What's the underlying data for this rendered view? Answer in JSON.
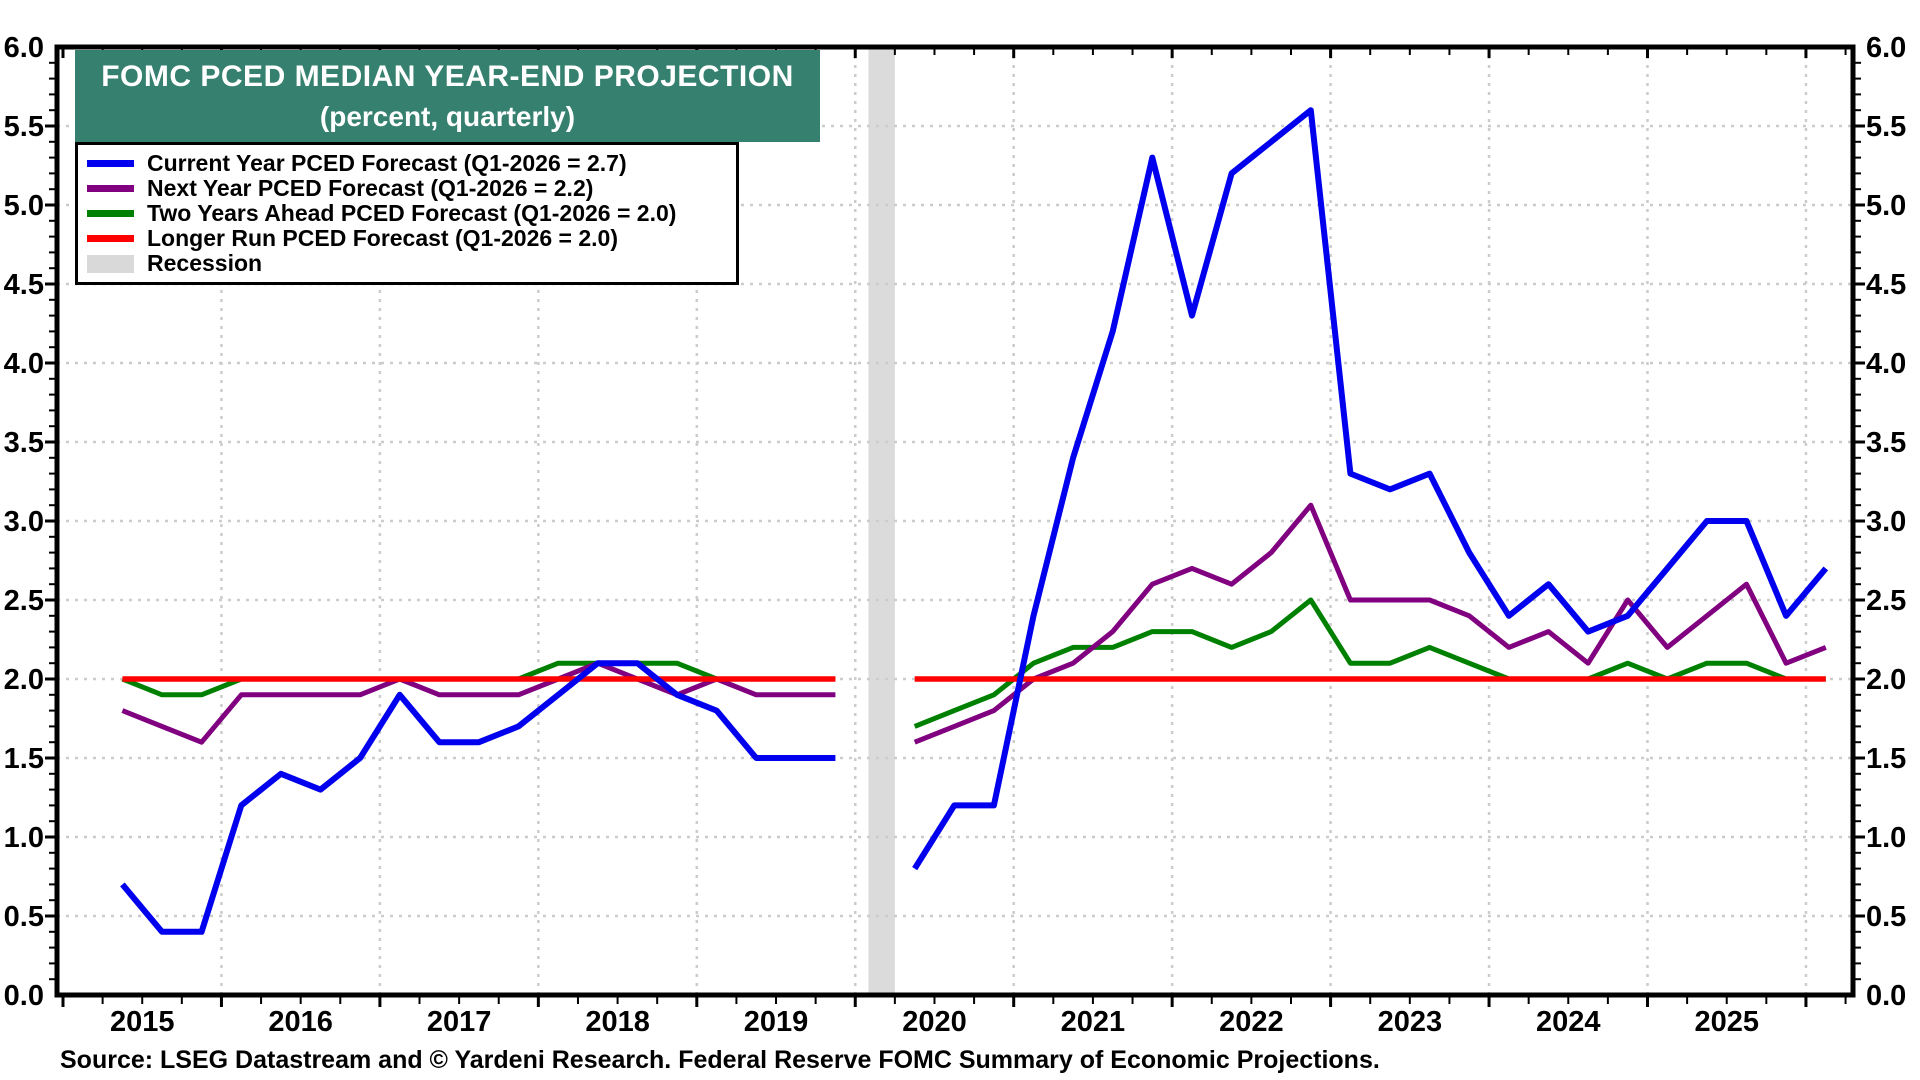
{
  "title": {
    "line1": "FOMC PCED MEDIAN YEAR-END PROJECTION",
    "line2": "(percent, quarterly)"
  },
  "source": "Source: LSEG Datastream and © Yardeni Research. Federal Reserve FOMC Summary of Economic Projections.",
  "colors": {
    "background": "#FFFFFF",
    "title_bg": "#35806F",
    "title_text": "#FFFFFF",
    "frame": "#000000",
    "gridline": "#CCCCCC",
    "recession": "#DBDBDB",
    "text": "#000000"
  },
  "chart_data": {
    "type": "line",
    "title": "FOMC PCED MEDIAN YEAR-END PROJECTION",
    "subtitle": "(percent, quarterly)",
    "grid": true,
    "legend_position": "top-left",
    "x": [
      "2015Q2",
      "2015Q3",
      "2015Q4",
      "2016Q1",
      "2016Q2",
      "2016Q3",
      "2016Q4",
      "2017Q1",
      "2017Q2",
      "2017Q3",
      "2017Q4",
      "2018Q1",
      "2018Q2",
      "2018Q3",
      "2018Q4",
      "2019Q1",
      "2019Q2",
      "2019Q3",
      "2019Q4",
      "2020Q1",
      "2020Q2",
      "2020Q3",
      "2020Q4",
      "2021Q1",
      "2021Q2",
      "2021Q3",
      "2021Q4",
      "2022Q1",
      "2022Q2",
      "2022Q3",
      "2022Q4",
      "2023Q1",
      "2023Q2",
      "2023Q3",
      "2023Q4",
      "2024Q1",
      "2024Q2",
      "2024Q3",
      "2024Q4",
      "2025Q1",
      "2025Q2",
      "2025Q3",
      "2025Q4",
      "2026Q1"
    ],
    "series": [
      {
        "name": "Current Year PCED Forecast (Q1-2026 = 2.7)",
        "color": "#0000EE",
        "values": [
          0.7,
          0.4,
          0.4,
          1.2,
          1.4,
          1.3,
          1.5,
          1.9,
          1.6,
          1.6,
          1.7,
          1.9,
          2.1,
          2.1,
          1.9,
          1.8,
          1.5,
          1.5,
          1.5,
          null,
          0.8,
          1.2,
          1.2,
          2.4,
          3.4,
          4.2,
          5.3,
          4.3,
          5.2,
          5.4,
          5.6,
          3.3,
          3.2,
          3.3,
          2.8,
          2.4,
          2.6,
          2.3,
          2.4,
          2.7,
          3.0,
          3.0,
          2.4,
          2.7
        ]
      },
      {
        "name": "Next Year PCED Forecast (Q1-2026 = 2.2)",
        "color": "#800080",
        "values": [
          1.8,
          1.7,
          1.6,
          1.9,
          1.9,
          1.9,
          1.9,
          2.0,
          1.9,
          1.9,
          1.9,
          2.0,
          2.1,
          2.0,
          1.9,
          2.0,
          1.9,
          1.9,
          1.9,
          null,
          1.6,
          1.7,
          1.8,
          2.0,
          2.1,
          2.3,
          2.6,
          2.7,
          2.6,
          2.8,
          3.1,
          2.5,
          2.5,
          2.5,
          2.4,
          2.2,
          2.3,
          2.1,
          2.5,
          2.2,
          2.4,
          2.6,
          2.1,
          2.2
        ]
      },
      {
        "name": "Two Years Ahead PCED Forecast (Q1-2026 = 2.0)",
        "color": "#008000",
        "values": [
          2.0,
          1.9,
          1.9,
          2.0,
          2.0,
          2.0,
          2.0,
          2.0,
          2.0,
          2.0,
          2.0,
          2.1,
          2.1,
          2.1,
          2.1,
          2.0,
          2.0,
          2.0,
          2.0,
          null,
          1.7,
          1.8,
          1.9,
          2.1,
          2.2,
          2.2,
          2.3,
          2.3,
          2.2,
          2.3,
          2.5,
          2.1,
          2.1,
          2.2,
          2.1,
          2.0,
          2.0,
          2.0,
          2.1,
          2.0,
          2.1,
          2.1,
          2.0,
          2.0
        ]
      },
      {
        "name": "Longer Run PCED Forecast (Q1-2026 = 2.0)",
        "color": "#FF0000",
        "values": [
          2.0,
          2.0,
          2.0,
          2.0,
          2.0,
          2.0,
          2.0,
          2.0,
          2.0,
          2.0,
          2.0,
          2.0,
          2.0,
          2.0,
          2.0,
          2.0,
          2.0,
          2.0,
          2.0,
          null,
          2.0,
          2.0,
          2.0,
          2.0,
          2.0,
          2.0,
          2.0,
          2.0,
          2.0,
          2.0,
          2.0,
          2.0,
          2.0,
          2.0,
          2.0,
          2.0,
          2.0,
          2.0,
          2.0,
          2.0,
          2.0,
          2.0,
          2.0,
          2.0
        ]
      }
    ],
    "legend": [
      {
        "label": "Current Year PCED Forecast (Q1-2026 = 2.7)",
        "color": "#0000EE",
        "swatch": "line"
      },
      {
        "label": "Next Year PCED Forecast (Q1-2026 = 2.2)",
        "color": "#800080",
        "swatch": "line"
      },
      {
        "label": "Two Years Ahead PCED Forecast (Q1-2026 = 2.0)",
        "color": "#008000",
        "swatch": "line"
      },
      {
        "label": "Longer Run PCED Forecast (Q1-2026 = 2.0)",
        "color": "#FF0000",
        "swatch": "line"
      },
      {
        "label": "Recession",
        "color": "#D9D9D9",
        "swatch": "rect"
      }
    ],
    "recession_bands": [
      {
        "from": "2020-02",
        "to": "2020-04"
      }
    ],
    "y_axis": {
      "min": 0.0,
      "max": 6.0,
      "major_step": 0.5,
      "minor_step": 0.1,
      "tick_labels": [
        "0.0",
        "0.5",
        "1.0",
        "1.5",
        "2.0",
        "2.5",
        "3.0",
        "3.5",
        "4.0",
        "4.5",
        "5.0",
        "5.5",
        "6.0"
      ],
      "sides": "both"
    },
    "x_axis": {
      "year_labels": [
        "2015",
        "2016",
        "2017",
        "2018",
        "2019",
        "2020",
        "2021",
        "2022",
        "2023",
        "2024",
        "2025"
      ],
      "gridline_years": [
        2016,
        2017,
        2018,
        2019,
        2020,
        2021,
        2022,
        2023,
        2024,
        2025,
        2026
      ],
      "minor_tick": "quarterly"
    }
  }
}
